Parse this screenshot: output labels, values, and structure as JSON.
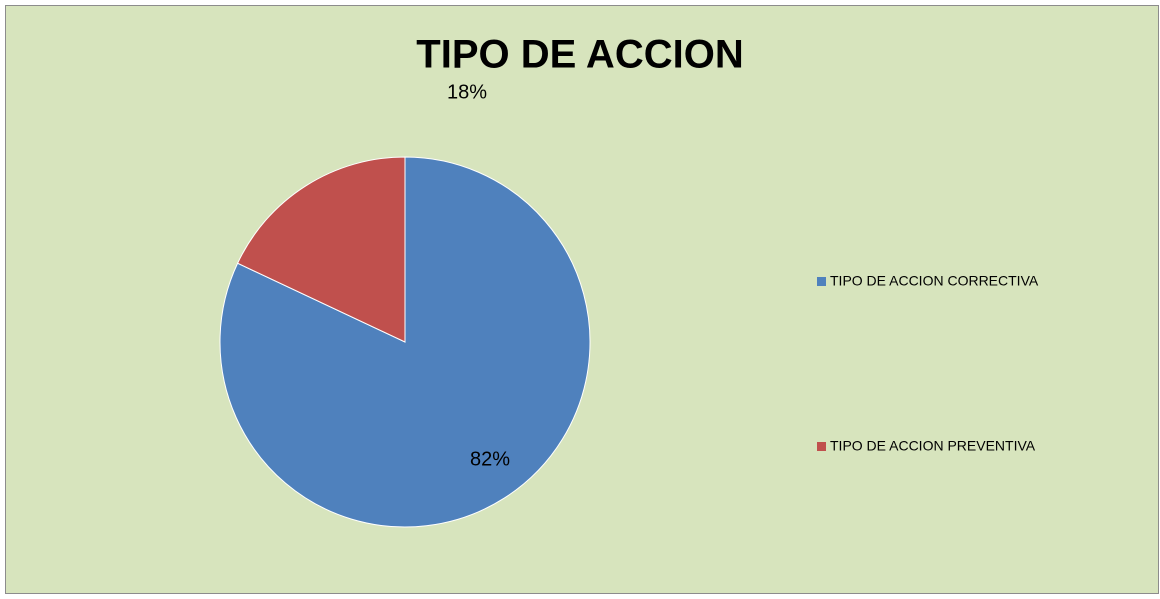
{
  "chart_data": {
    "type": "pie",
    "title": "TIPO DE ACCION",
    "categories": [
      "TIPO DE ACCION CORRECTIVA",
      "TIPO DE ACCION PREVENTIVA"
    ],
    "values": [
      82,
      18
    ],
    "value_labels": [
      "82%",
      "18%"
    ],
    "colors": [
      "#4f81bd",
      "#c0504d"
    ],
    "legend": "right"
  }
}
